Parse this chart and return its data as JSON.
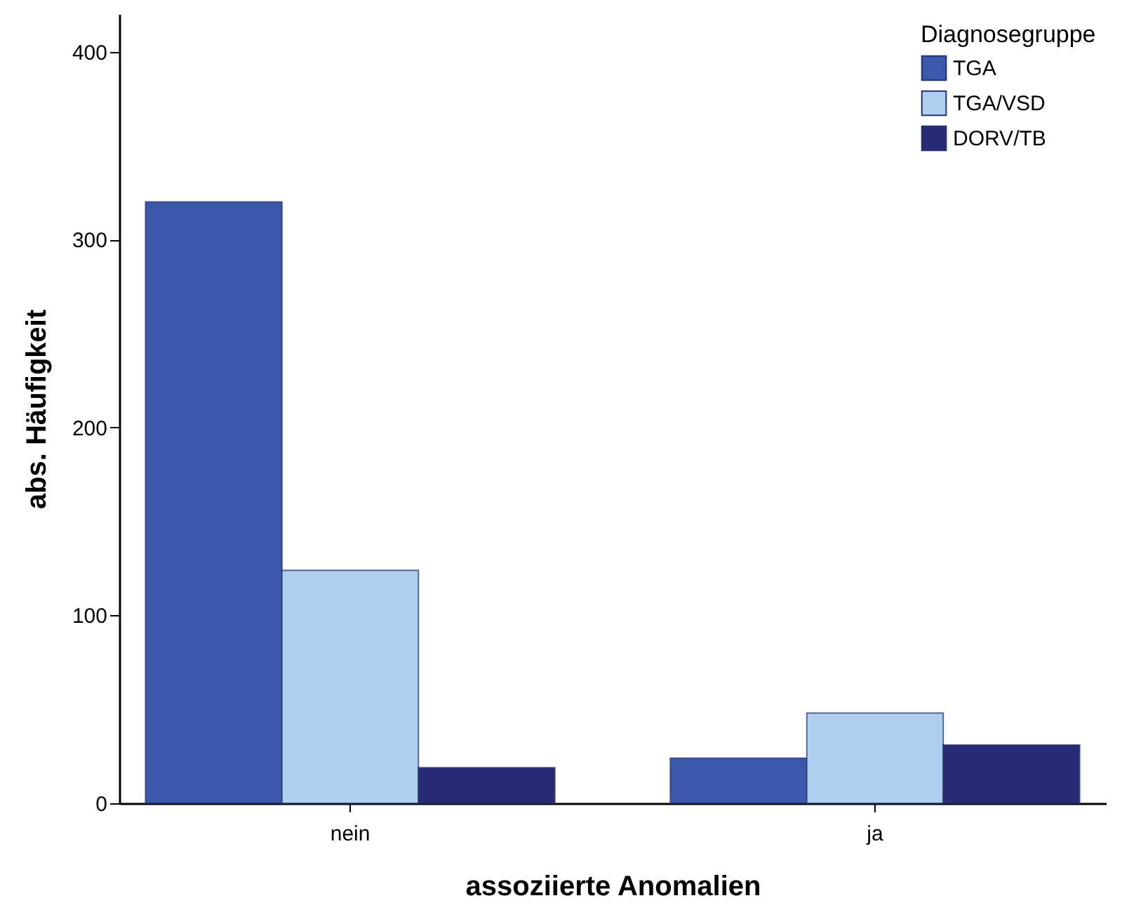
{
  "chart_data": {
    "type": "bar",
    "xlabel": "assoziierte Anomalien",
    "ylabel": "abs. Häufigkeit",
    "legend_title": "Diagnosegruppe",
    "categories": [
      "nein",
      "ja"
    ],
    "series": [
      {
        "name": "TGA",
        "color": "#3c58aa",
        "values": [
          320,
          24
        ]
      },
      {
        "name": "TGA/VSD",
        "color": "#aecfed",
        "values": [
          124,
          48
        ]
      },
      {
        "name": "DORV/TB",
        "color": "#282a74",
        "values": [
          19,
          31
        ]
      }
    ],
    "ylim": [
      0,
      420
    ],
    "yticks": [
      0,
      100,
      200,
      300,
      400
    ],
    "grid": false,
    "legend": "top right"
  }
}
